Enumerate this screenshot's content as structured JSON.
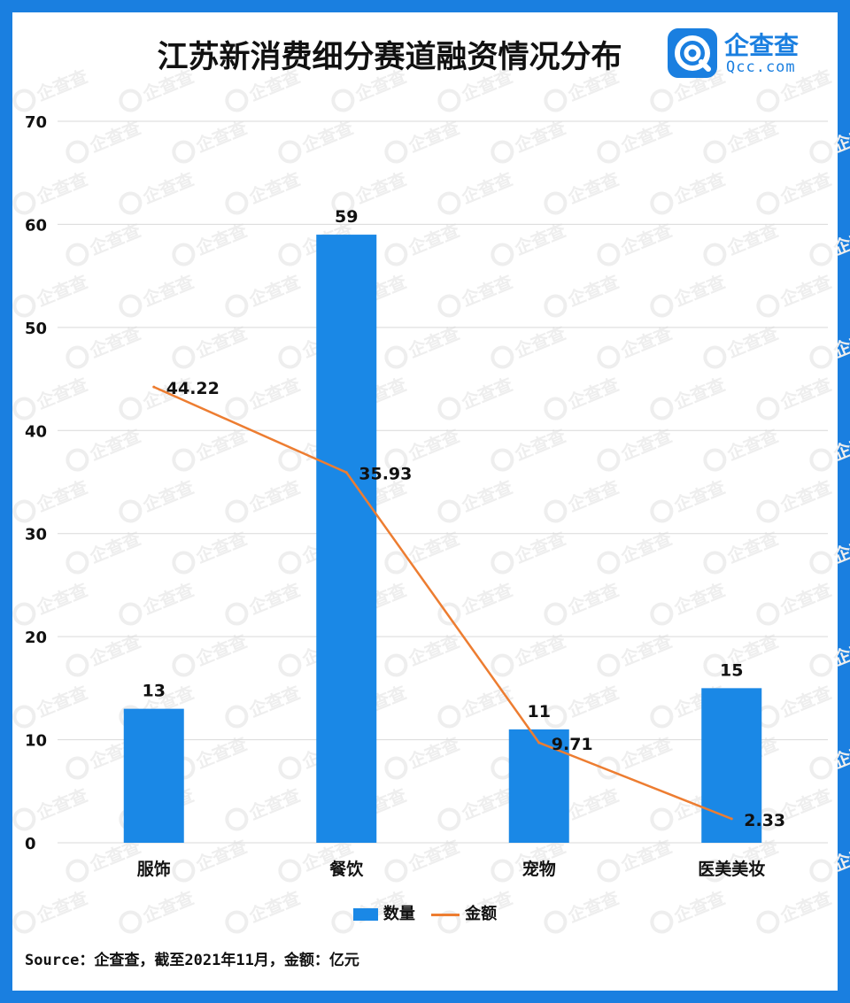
{
  "title": "江苏新消费细分赛道融资情况分布",
  "logo": {
    "name": "企查查",
    "domain": "Qcc.com",
    "watermark_text": "企查查"
  },
  "source": "Source：企查查，截至2021年11月，金额：亿元",
  "colors": {
    "border": "#1a7fe0",
    "bar": "#1a88e6",
    "line": "#ed7d31",
    "grid": "#d9d9d9"
  },
  "chart_data": {
    "type": "bar",
    "categories": [
      "服饰",
      "餐饮",
      "宠物",
      "医美美妆"
    ],
    "series": [
      {
        "name": "数量",
        "type": "bar",
        "values": [
          13,
          59,
          11,
          15
        ]
      },
      {
        "name": "金额",
        "type": "line",
        "values": [
          44.22,
          35.93,
          9.71,
          2.33
        ]
      }
    ],
    "data_labels": {
      "bar": [
        "13",
        "59",
        "11",
        "15"
      ],
      "line": [
        "44.22",
        "35.93",
        "9.71",
        "2.33"
      ]
    },
    "yticks": [
      "0",
      "10",
      "20",
      "30",
      "40",
      "50",
      "60",
      "70"
    ],
    "ylim": [
      0,
      70
    ],
    "grid": true,
    "legend_position": "bottom"
  }
}
